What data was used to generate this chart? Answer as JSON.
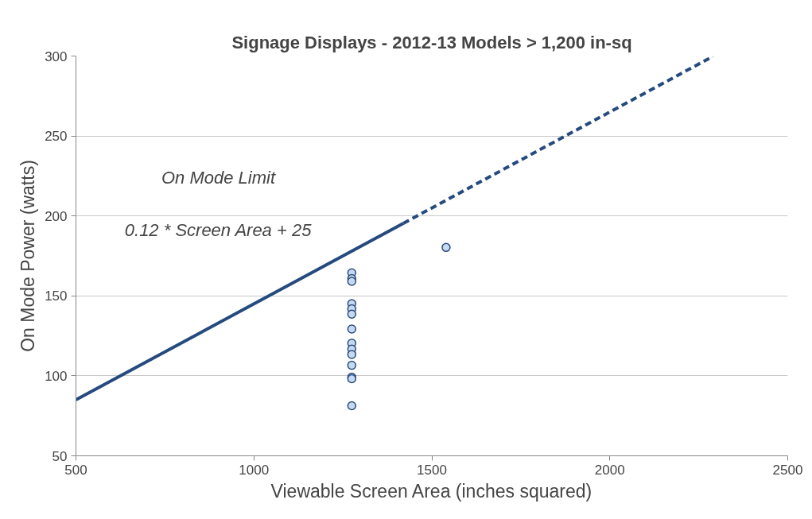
{
  "chart_data": {
    "type": "scatter",
    "title": "Signage Displays - 2012-13 Models > 1,200 in-sq",
    "xlabel": "Viewable Screen Area (inches squared)",
    "ylabel": "On Mode Power (watts)",
    "annotations": [
      "On Mode Limit",
      "0.12 * Screen Area + 25"
    ],
    "xlim": [
      500,
      2500
    ],
    "xticks": [
      500,
      1000,
      1500,
      2000,
      2500
    ],
    "ylim": [
      50,
      300
    ],
    "yticks": [
      50,
      100,
      150,
      200,
      250,
      300
    ],
    "grid": "y",
    "series": [
      {
        "type": "line",
        "line_style": "solid",
        "color": "#254a7e",
        "x": [
          500,
          1420
        ],
        "values": [
          85,
          195.4
        ]
      },
      {
        "type": "line",
        "line_style": "dashed",
        "color": "#254a7e",
        "x": [
          1420,
          2290
        ],
        "values": [
          195.4,
          299.8
        ]
      },
      {
        "marker": "circle",
        "color": "#c5d9f1",
        "x": [
          1275,
          1275,
          1275,
          1275,
          1275,
          1275,
          1275,
          1275,
          1275,
          1275,
          1275,
          1275,
          1275,
          1275,
          1540
        ],
        "values": [
          164.4,
          160.8,
          159.1,
          145.2,
          141.9,
          138.6,
          129.3,
          120.4,
          116.7,
          113.4,
          106.6,
          99.2,
          98.2,
          81.3,
          180.3
        ]
      }
    ]
  }
}
